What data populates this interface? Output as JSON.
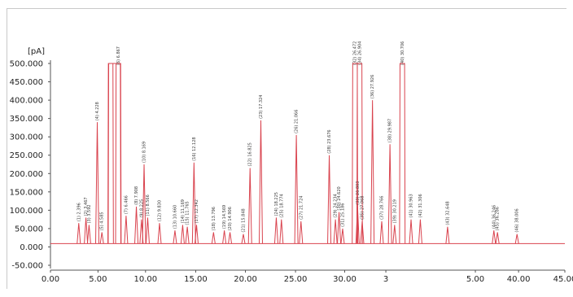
{
  "chart_data": {
    "type": "line",
    "title": "",
    "ylabel": "[pA]",
    "xlabel": "",
    "ylim": [
      -50000,
      500000
    ],
    "xlim": [
      0,
      50
    ],
    "grid": false,
    "line_color": "#d9434e",
    "y_ticks": [
      "500.000",
      "450.000",
      "400.000",
      "350.000",
      "300.000",
      "250.000",
      "200.000",
      "150.000",
      "100.000",
      "50.000",
      "0.000",
      "-50.000"
    ],
    "y_tick_values": [
      500000,
      450000,
      400000,
      350000,
      300000,
      250000,
      200000,
      150000,
      100000,
      50000,
      0,
      -50000
    ],
    "x_ticks": [
      "0.00",
      "5.00",
      "10.00",
      "15.00",
      "20.00",
      "25.00",
      "30.00",
      "3",
      "5.00",
      "40.00",
      "45.00"
    ],
    "x_tick_positions": [
      0,
      4.62,
      9.24,
      14.12,
      18.95,
      23.82,
      28.6,
      32.6,
      41.3,
      45.5,
      50.0
    ],
    "baseline": 9000,
    "peaks": [
      {
        "x": 2.75,
        "y": 65000,
        "label": "(1) 2.396"
      },
      {
        "x": 3.45,
        "y": 80000,
        "label": "(2) 3.467"
      },
      {
        "x": 3.75,
        "y": 60000,
        "label": "(3) 3.592"
      },
      {
        "x": 4.55,
        "y": 340000,
        "label": "(4) 4.228"
      },
      {
        "x": 5.0,
        "y": 40000,
        "label": "(5) 4.585"
      },
      {
        "x": 5.85,
        "y": 500000,
        "label": ""
      },
      {
        "x": 6.6,
        "y": 500000,
        "label": "(6) 6.867"
      },
      {
        "x": 7.35,
        "y": 85000,
        "label": "(7) 6.466"
      },
      {
        "x": 8.35,
        "y": 110000,
        "label": "(8) 7.908"
      },
      {
        "x": 8.85,
        "y": 75000,
        "label": "(9) 8.225"
      },
      {
        "x": 9.1,
        "y": 225000,
        "label": "(10) 8.169"
      },
      {
        "x": 9.45,
        "y": 80000,
        "label": "(11) 8.566"
      },
      {
        "x": 10.6,
        "y": 65000,
        "label": "(12) 9.830"
      },
      {
        "x": 12.1,
        "y": 45000,
        "label": "(13) 10.660"
      },
      {
        "x": 12.85,
        "y": 60000,
        "label": "(14) 11.169"
      },
      {
        "x": 13.3,
        "y": 55000,
        "label": "(15) 11.765"
      },
      {
        "x": 13.95,
        "y": 230000,
        "label": "(16) 12.128"
      },
      {
        "x": 14.2,
        "y": 60000,
        "label": "(17) 12.342"
      },
      {
        "x": 15.85,
        "y": 40000,
        "label": "(18) 13.796"
      },
      {
        "x": 16.9,
        "y": 45000,
        "label": "(19) 14.569"
      },
      {
        "x": 17.45,
        "y": 40000,
        "label": "(20) 14.906"
      },
      {
        "x": 18.75,
        "y": 35000,
        "label": "(21) 15.848"
      },
      {
        "x": 19.4,
        "y": 215000,
        "label": "(22) 16.825"
      },
      {
        "x": 20.45,
        "y": 345000,
        "label": "(23) 17.324"
      },
      {
        "x": 21.95,
        "y": 80000,
        "label": "(24) 18.225"
      },
      {
        "x": 22.45,
        "y": 75000,
        "label": "(25) 18.774"
      },
      {
        "x": 23.9,
        "y": 305000,
        "label": "(26) 21.066"
      },
      {
        "x": 24.35,
        "y": 70000,
        "label": "(27) 21.724"
      },
      {
        "x": 27.1,
        "y": 250000,
        "label": "(28) 23.676"
      },
      {
        "x": 27.7,
        "y": 75000,
        "label": "(29) 24.234"
      },
      {
        "x": 28.05,
        "y": 95000,
        "label": "(30) 24.620"
      },
      {
        "x": 28.4,
        "y": 50000,
        "label": "(31) 25.186"
      },
      {
        "x": 29.6,
        "y": 500000,
        "label": "(32) 26.472"
      },
      {
        "x": 29.85,
        "y": 110000,
        "label": "(33) 26.803"
      },
      {
        "x": 30.05,
        "y": 500000,
        "label": "(34) 26.904"
      },
      {
        "x": 30.3,
        "y": 70000,
        "label": "(35) 27.068"
      },
      {
        "x": 31.3,
        "y": 400000,
        "label": "(36) 27.926"
      },
      {
        "x": 32.2,
        "y": 70000,
        "label": "(37) 28.766"
      },
      {
        "x": 33.0,
        "y": 280000,
        "label": "(38) 29.987"
      },
      {
        "x": 33.45,
        "y": 60000,
        "label": "(39) 30.219"
      },
      {
        "x": 34.2,
        "y": 500000,
        "label": "(40) 30.706"
      },
      {
        "x": 35.05,
        "y": 75000,
        "label": "(41) 30.963"
      },
      {
        "x": 35.95,
        "y": 75000,
        "label": "(42) 31.306"
      },
      {
        "x": 38.6,
        "y": 55000,
        "label": "(43) 32.648"
      },
      {
        "x": 43.1,
        "y": 45000,
        "label": "(44) 36.246"
      },
      {
        "x": 43.45,
        "y": 40000,
        "label": "(45) 36.286"
      },
      {
        "x": 45.35,
        "y": 35000,
        "label": "(46) 38.006"
      }
    ]
  }
}
